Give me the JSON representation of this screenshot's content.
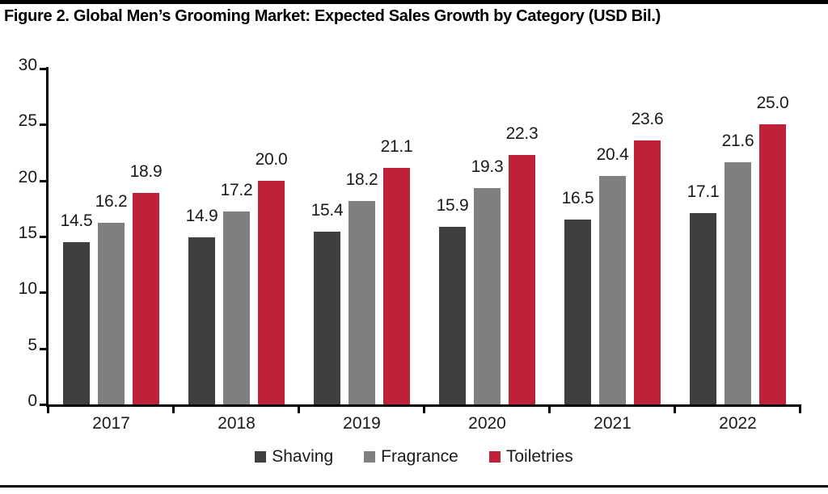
{
  "title": "Figure 2. Global Men’s Grooming Market: Expected Sales Growth by Category (USD Bil.)",
  "chart_data": {
    "type": "bar",
    "title": "Figure 2. Global Men’s Grooming Market: Expected Sales Growth by Category (USD Bil.)",
    "xlabel": "",
    "ylabel": "",
    "categories": [
      "2017",
      "2018",
      "2019",
      "2020",
      "2021",
      "2022"
    ],
    "series": [
      {
        "name": "Shaving",
        "color": "#3f3f3f",
        "values": [
          14.5,
          14.9,
          15.4,
          15.9,
          16.5,
          17.1
        ]
      },
      {
        "name": "Fragrance",
        "color": "#7f7f7f",
        "values": [
          16.2,
          17.2,
          18.2,
          19.3,
          20.4,
          21.6
        ]
      },
      {
        "name": "Toiletries",
        "color": "#be2139",
        "values": [
          18.9,
          20.0,
          21.1,
          22.3,
          23.6,
          25.0
        ]
      }
    ],
    "ylim": [
      0,
      30
    ],
    "yticks": [
      0,
      5,
      10,
      15,
      20,
      25,
      30
    ],
    "grid": false,
    "value_labels": true,
    "value_label_decimals": 1,
    "legend_position": "bottom",
    "axis_color": "#000000",
    "label_color": "#1a1a1a"
  }
}
